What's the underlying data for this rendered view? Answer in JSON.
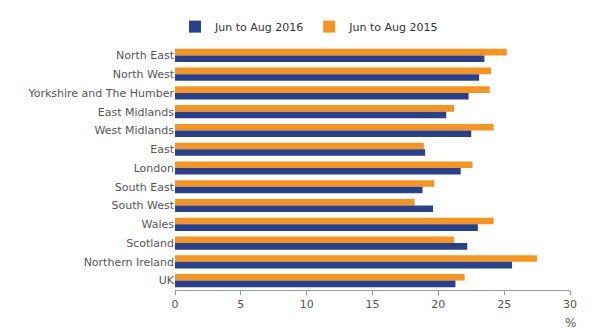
{
  "chart_data": {
    "type": "bar",
    "orientation": "horizontal",
    "x_label": "%",
    "categories": [
      "North East",
      "North West",
      "Yorkshire and The Humber",
      "East Midlands",
      "West Midlands",
      "East",
      "London",
      "South East",
      "South West",
      "Wales",
      "Scotland",
      "Northern Ireland",
      "UK"
    ],
    "series": [
      {
        "name": "Jun to Aug 2016",
        "color": "#27418e",
        "values": [
          23.5,
          23.1,
          22.3,
          20.6,
          22.5,
          19.0,
          21.7,
          18.8,
          19.6,
          23.0,
          22.2,
          25.6,
          21.3
        ]
      },
      {
        "name": "Jun to Aug 2015",
        "color": "#f7941d",
        "values": [
          25.2,
          24.0,
          23.9,
          21.2,
          24.2,
          18.9,
          22.6,
          19.7,
          18.2,
          24.2,
          21.2,
          27.5,
          22.0
        ]
      }
    ],
    "xlim": [
      0,
      30
    ],
    "xticks": [
      0,
      5,
      10,
      15,
      20,
      25,
      30
    ],
    "grid": false,
    "legend": "top-left"
  }
}
